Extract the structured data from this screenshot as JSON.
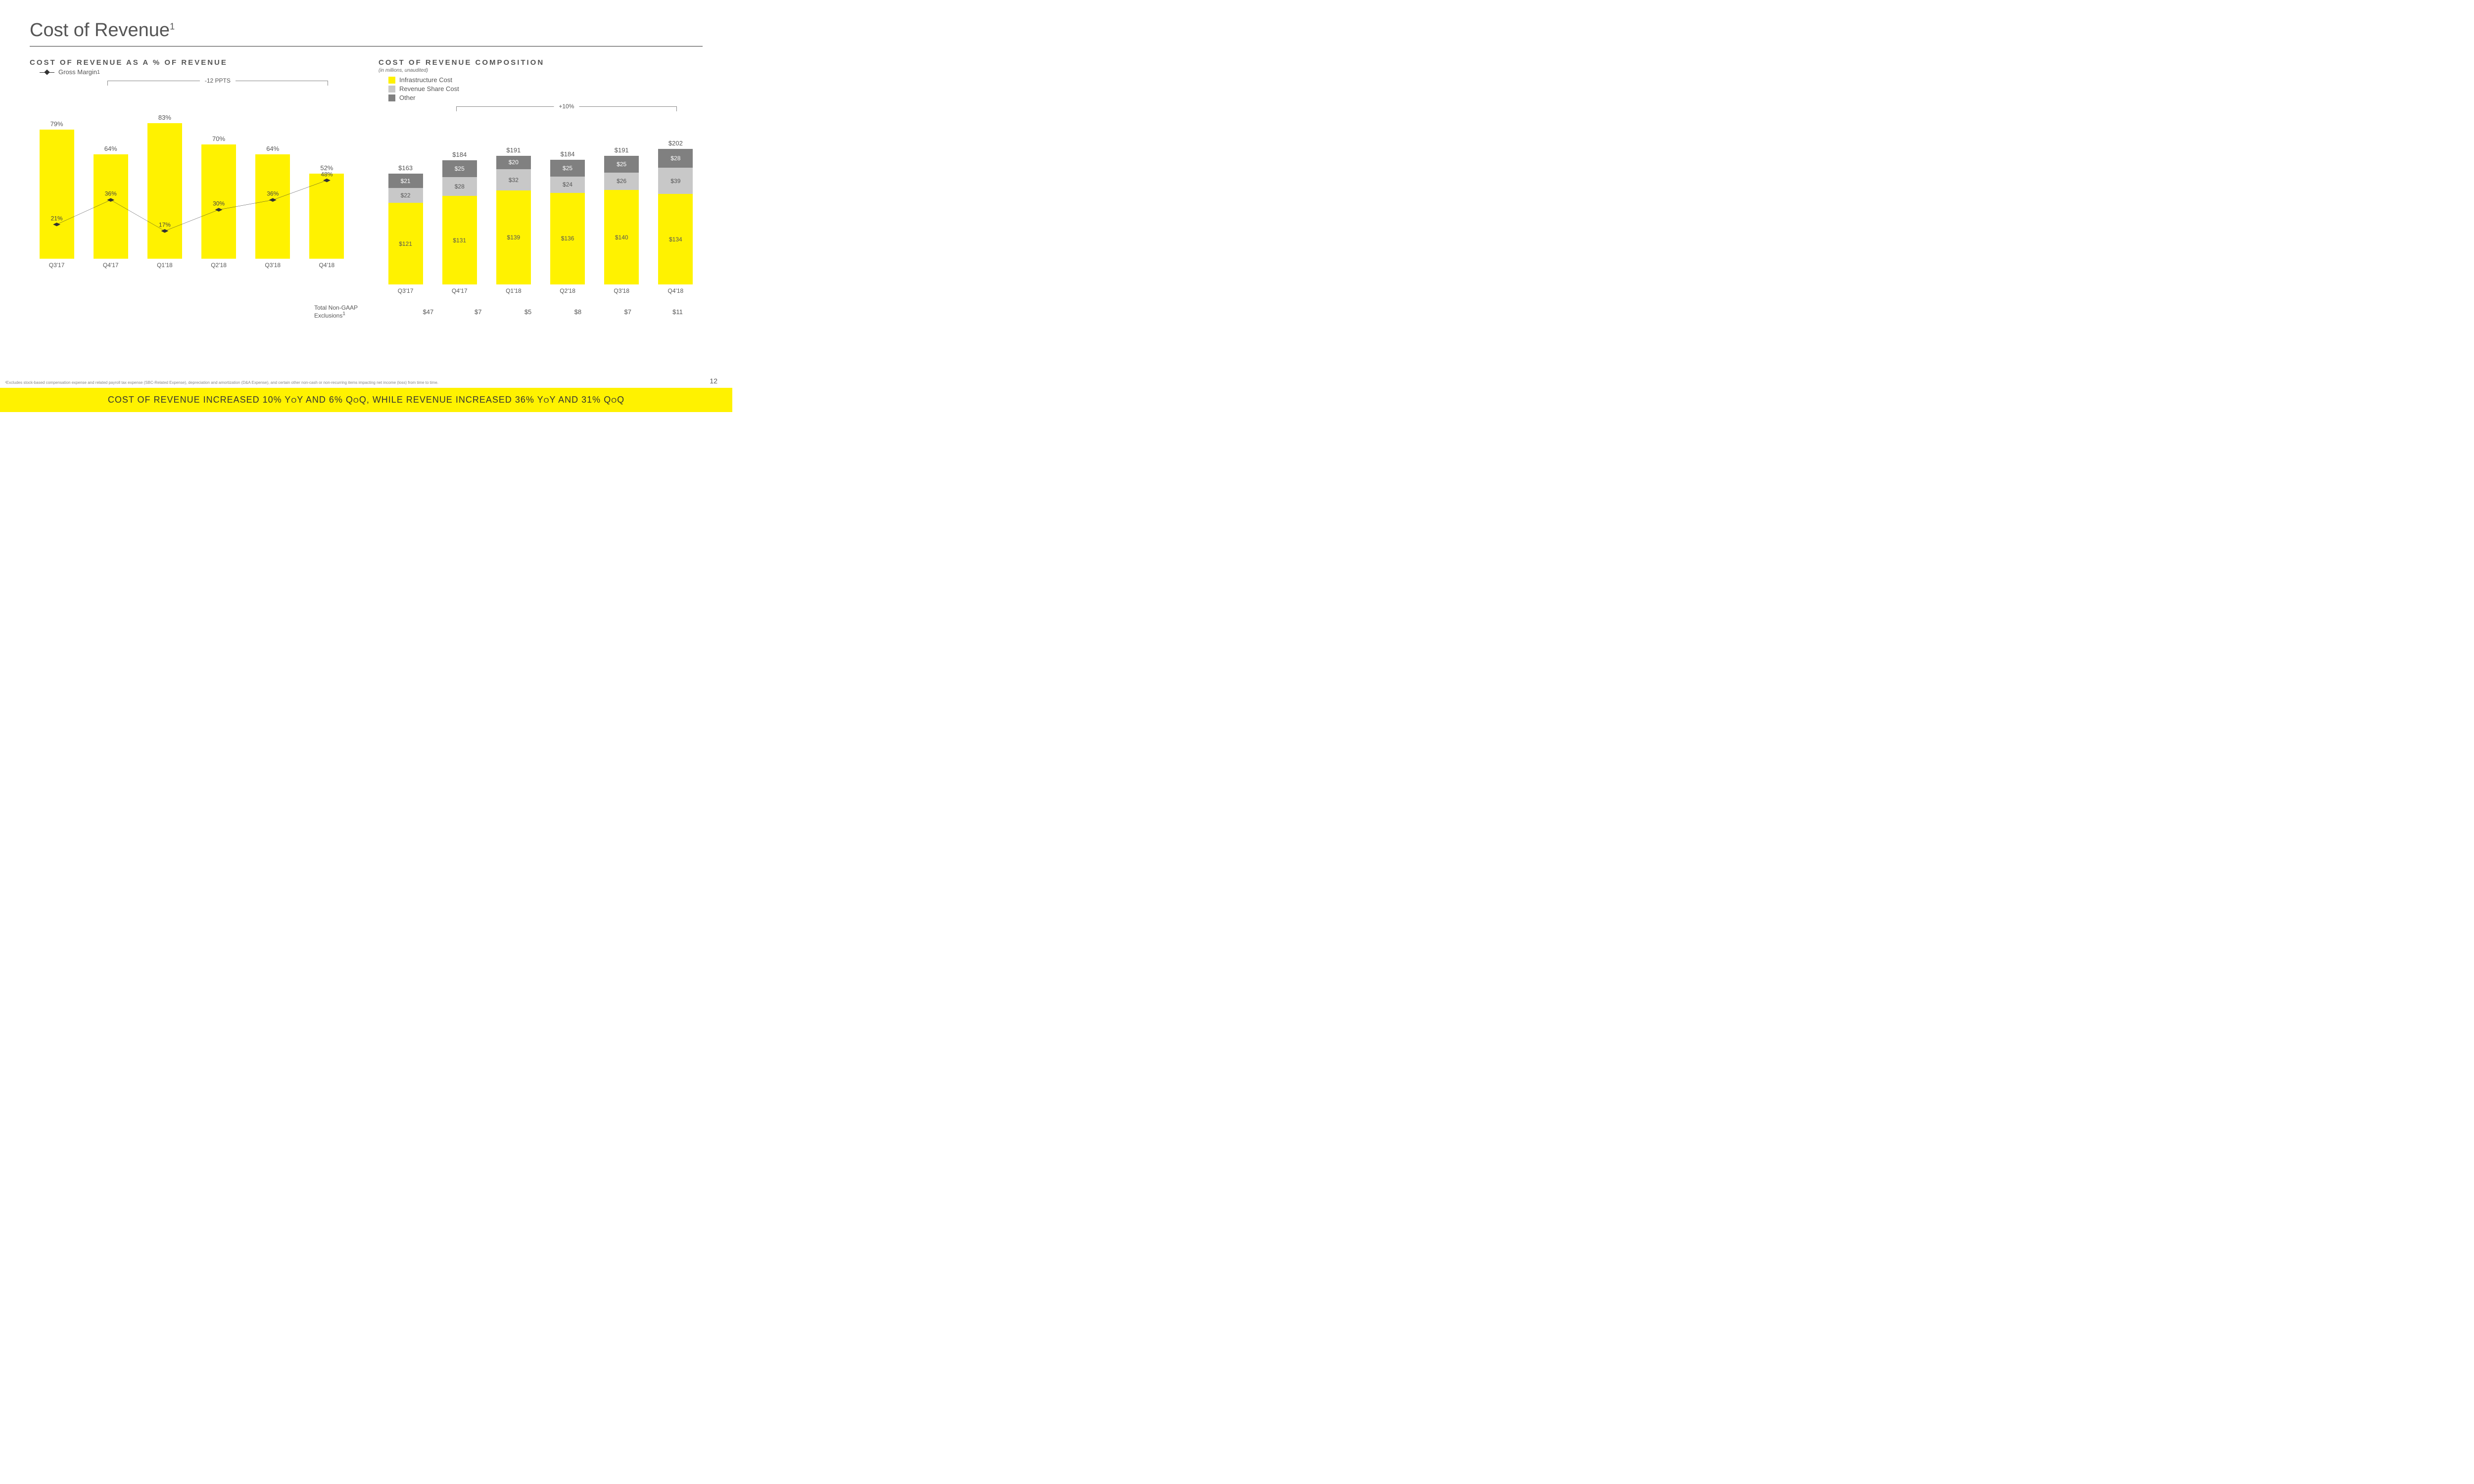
{
  "title": "Cost of Revenue",
  "title_sup": "1",
  "page_number": "12",
  "footnote": "¹Excludes stock-based compensation expense and related payroll tax expense (SBC-Related Expense), depreciation and amortization (D&A Expense), and certain other non-cash or non-recurring items impacting net income (loss) from time to time.",
  "banner": {
    "prefix": "COST OF REVENUE INCREASED 10% Y",
    "small1": "O",
    "mid1": "Y AND 6% Q",
    "small2": "O",
    "mid2": "Q, WHILE REVENUE INCREASED 36% Y",
    "small3": "O",
    "mid3": "Y AND 31% Q",
    "small4": "O",
    "suffix": "Q"
  },
  "colors": {
    "yellow": "#fff200",
    "grey_light": "#c8c8c8",
    "grey_dark": "#808080",
    "line": "#333333",
    "bg": "#ffffff"
  },
  "left_chart": {
    "subtitle": "COST OF REVENUE AS A % OF REVENUE",
    "legend_label": "Gross Margin",
    "legend_sup": "1",
    "bracket_label": "-12 PPTS",
    "bracket_left_pct": 24,
    "bracket_right_pct": 92,
    "ymax": 100,
    "categories": [
      "Q3'17",
      "Q4'17",
      "Q1'18",
      "Q2'18",
      "Q3'18",
      "Q4'18"
    ],
    "bars": [
      79,
      64,
      83,
      70,
      64,
      52
    ],
    "bar_labels": [
      "79%",
      "64%",
      "83%",
      "70%",
      "64%",
      "52%"
    ],
    "line": [
      21,
      36,
      17,
      30,
      36,
      48
    ],
    "line_labels": [
      "21%",
      "36%",
      "17%",
      "30%",
      "36%",
      "48%"
    ]
  },
  "right_chart": {
    "subtitle": "COST OF REVENUE COMPOSITION",
    "subtitle_note": "(in millions, unaudited)",
    "legend": [
      {
        "label": "Infrastructure Cost",
        "color": "#fff200"
      },
      {
        "label": "Revenue Share Cost",
        "color": "#c8c8c8"
      },
      {
        "label": "Other",
        "color": "#808080"
      }
    ],
    "bracket_label": "+10%",
    "bracket_left_pct": 24,
    "bracket_right_pct": 92,
    "ymax": 220,
    "categories": [
      "Q3'17",
      "Q4'17",
      "Q1'18",
      "Q2'18",
      "Q3'18",
      "Q4'18"
    ],
    "totals": [
      "$163",
      "$184",
      "$191",
      "$184",
      "$191",
      "$202"
    ],
    "stacks": [
      {
        "infra": 121,
        "share": 22,
        "other": 21,
        "infra_l": "$121",
        "share_l": "$22",
        "other_l": "$21"
      },
      {
        "infra": 131,
        "share": 28,
        "other": 25,
        "infra_l": "$131",
        "share_l": "$28",
        "other_l": "$25"
      },
      {
        "infra": 139,
        "share": 32,
        "other": 20,
        "infra_l": "$139",
        "share_l": "$32",
        "other_l": "$20"
      },
      {
        "infra": 136,
        "share": 24,
        "other": 25,
        "infra_l": "$136",
        "share_l": "$24",
        "other_l": "$25"
      },
      {
        "infra": 140,
        "share": 26,
        "other": 25,
        "infra_l": "$140",
        "share_l": "$26",
        "other_l": "$25"
      },
      {
        "infra": 134,
        "share": 39,
        "other": 28,
        "infra_l": "$134",
        "share_l": "$39",
        "other_l": "$28"
      }
    ],
    "exclusions_label_1": "Total Non-GAAP",
    "exclusions_label_2": "Exclusions",
    "exclusions_sup": "1",
    "exclusions": [
      "$47",
      "$7",
      "$5",
      "$8",
      "$7",
      "$11"
    ]
  }
}
